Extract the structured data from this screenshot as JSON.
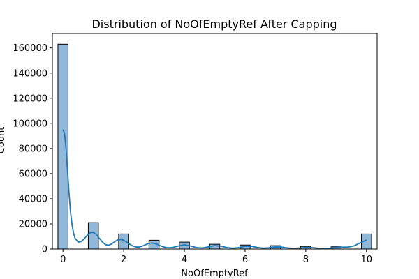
{
  "chart_data": {
    "type": "bar",
    "title": "Distribution of NoOfEmptyRef After Capping",
    "xlabel": "NoOfEmptyRef",
    "ylabel": "Count",
    "xlim": [
      -0.35,
      10.35
    ],
    "ylim": [
      0,
      171500
    ],
    "x_ticks": [
      0,
      2,
      4,
      6,
      8,
      10
    ],
    "y_ticks": [
      0,
      20000,
      40000,
      60000,
      80000,
      100000,
      120000,
      140000,
      160000
    ],
    "bin_width": 0.3333,
    "bins": [
      {
        "x": 0,
        "value": 163000
      },
      {
        "x": 1,
        "value": 21000
      },
      {
        "x": 2,
        "value": 12000
      },
      {
        "x": 3,
        "value": 7000
      },
      {
        "x": 4,
        "value": 5500
      },
      {
        "x": 5,
        "value": 3800
      },
      {
        "x": 6,
        "value": 3200
      },
      {
        "x": 7,
        "value": 2700
      },
      {
        "x": 8,
        "value": 2100
      },
      {
        "x": 9,
        "value": 1800
      },
      {
        "x": 10,
        "value": 12000
      }
    ],
    "kde": {
      "x": [
        0,
        0.05,
        0.1,
        0.15,
        0.2,
        0.25,
        0.3,
        0.35,
        0.4,
        0.5,
        0.6,
        0.7,
        0.8,
        0.9,
        1.0,
        1.1,
        1.2,
        1.3,
        1.4,
        1.5,
        1.6,
        1.7,
        1.8,
        1.9,
        2.0,
        2.1,
        2.2,
        2.3,
        2.4,
        2.5,
        2.6,
        2.7,
        2.8,
        2.9,
        3.0,
        3.1,
        3.2,
        3.3,
        3.4,
        3.5,
        3.6,
        3.8,
        4.0,
        4.2,
        4.4,
        4.6,
        4.8,
        5.0,
        5.2,
        5.4,
        5.6,
        5.8,
        6.0,
        6.2,
        6.4,
        6.6,
        6.8,
        7.0,
        7.2,
        7.4,
        7.6,
        7.8,
        8.0,
        8.2,
        8.4,
        8.6,
        8.8,
        9.0,
        9.2,
        9.4,
        9.6,
        9.8,
        10.0
      ],
      "y": [
        95000,
        92000,
        80000,
        62000,
        44000,
        29000,
        19000,
        12500,
        8500,
        5500,
        6000,
        8200,
        11000,
        13000,
        13200,
        11500,
        8500,
        5500,
        3500,
        3000,
        4000,
        5800,
        7200,
        7600,
        7000,
        5500,
        3800,
        2400,
        1700,
        1600,
        2200,
        3200,
        4200,
        4800,
        4600,
        3800,
        2700,
        1800,
        1200,
        1000,
        1200,
        2400,
        3400,
        2400,
        1100,
        900,
        1700,
        2800,
        2300,
        1200,
        700,
        1100,
        2300,
        2200,
        1300,
        700,
        1000,
        1700,
        1500,
        900,
        500,
        800,
        1300,
        1200,
        700,
        400,
        600,
        1200,
        1500,
        1600,
        2600,
        5000,
        7200
      ]
    },
    "grid": false,
    "legend": "none"
  },
  "colors": {
    "bar_fill": "#92b8d9",
    "bar_edge": "#000000",
    "kde_line": "#1f77b4",
    "axis": "#000000"
  }
}
